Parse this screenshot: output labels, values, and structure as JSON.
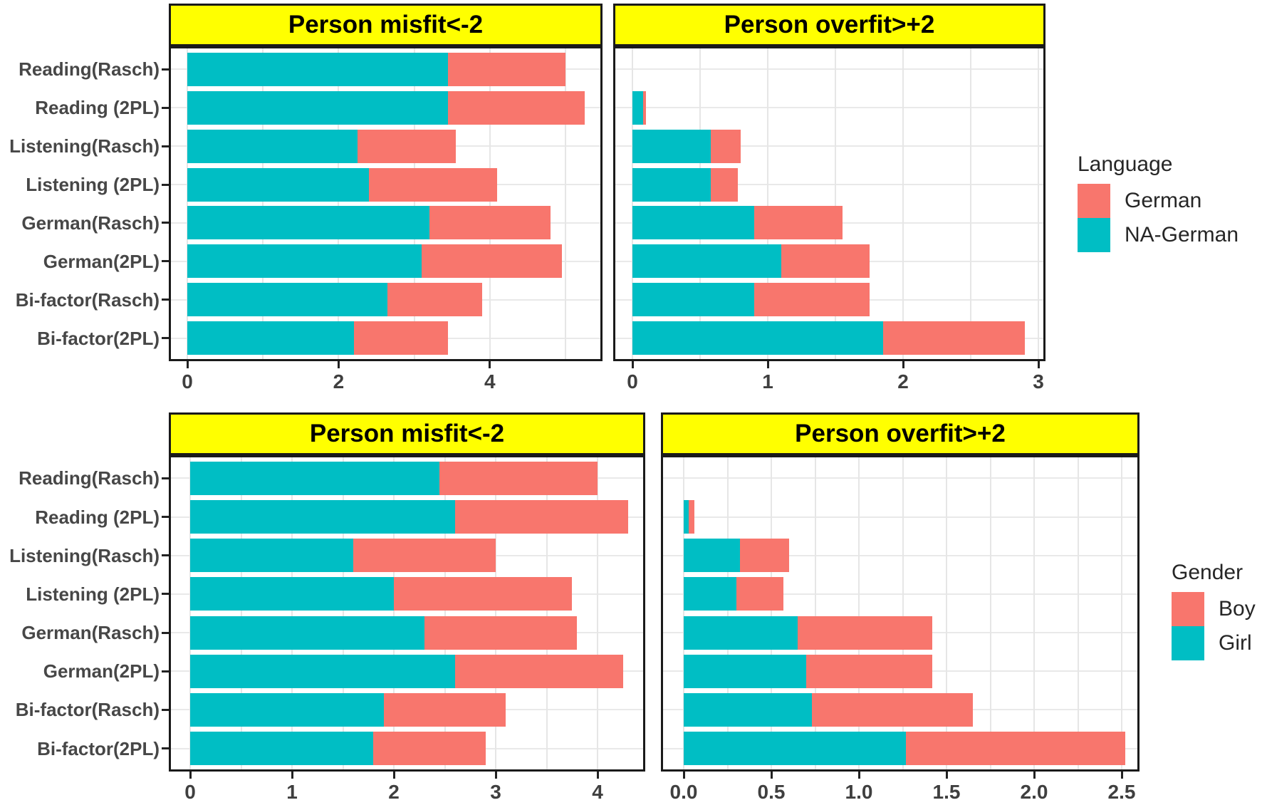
{
  "colors": {
    "red": "#F8766D",
    "teal": "#00BEC4",
    "strip_bg": "#FFFF00",
    "grid": "#E6E6E6",
    "panel_border": "#1A1A1A",
    "axis_text": "#3F3F3F"
  },
  "categories": [
    "Reading(Rasch)",
    "Reading (2PL)",
    "Listening(Rasch)",
    "Listening (2PL)",
    "German(Rasch)",
    "German(2PL)",
    "Bi-factor(Rasch)",
    "Bi-factor(2PL)"
  ],
  "legends": [
    {
      "title": "Language",
      "entries": [
        {
          "label": "German",
          "color": "red"
        },
        {
          "label": "NA-German",
          "color": "teal"
        }
      ]
    },
    {
      "title": "Gender",
      "entries": [
        {
          "label": "Boy",
          "color": "red"
        },
        {
          "label": "Girl",
          "color": "teal"
        }
      ]
    }
  ],
  "chart_data": [
    {
      "id": "top-left",
      "type": "bar",
      "orientation": "horizontal-stacked",
      "title": "Person misfit<-2",
      "legend_group": "Language",
      "categories": [
        "Reading(Rasch)",
        "Reading (2PL)",
        "Listening(Rasch)",
        "Listening (2PL)",
        "German(Rasch)",
        "German(2PL)",
        "Bi-factor(Rasch)",
        "Bi-factor(2PL)"
      ],
      "xlim": [
        0,
        5.49
      ],
      "x_ticks": [
        0,
        2,
        4
      ],
      "x_tick_labels": [
        "0",
        "2",
        "4"
      ],
      "grid_step": 1,
      "series": [
        {
          "name": "NA-German",
          "color": "teal",
          "values": [
            3.45,
            3.45,
            2.25,
            2.4,
            3.2,
            3.1,
            2.65,
            2.2
          ]
        },
        {
          "name": "German",
          "color": "red",
          "values": [
            1.55,
            1.8,
            1.3,
            1.7,
            1.6,
            1.85,
            1.25,
            1.25
          ]
        }
      ]
    },
    {
      "id": "top-right",
      "type": "bar",
      "orientation": "horizontal-stacked",
      "title": "Person overfit>+2",
      "legend_group": "Language",
      "categories": [
        "Reading(Rasch)",
        "Reading (2PL)",
        "Listening(Rasch)",
        "Listening (2PL)",
        "German(Rasch)",
        "German(2PL)",
        "Bi-factor(Rasch)",
        "Bi-factor(2PL)"
      ],
      "xlim": [
        0,
        3.05
      ],
      "x_ticks": [
        0,
        1,
        2,
        3
      ],
      "x_tick_labels": [
        "0",
        "1",
        "2",
        "3"
      ],
      "grid_step": 0.5,
      "series": [
        {
          "name": "NA-German",
          "color": "teal",
          "values": [
            0,
            0.08,
            0.58,
            0.58,
            0.9,
            1.1,
            0.9,
            1.85
          ]
        },
        {
          "name": "German",
          "color": "red",
          "values": [
            0,
            0.02,
            0.22,
            0.2,
            0.65,
            0.65,
            0.85,
            1.05
          ]
        }
      ]
    },
    {
      "id": "bottom-left",
      "type": "bar",
      "orientation": "horizontal-stacked",
      "title": "Person misfit<-2",
      "legend_group": "Gender",
      "categories": [
        "Reading(Rasch)",
        "Reading (2PL)",
        "Listening(Rasch)",
        "Listening (2PL)",
        "German(Rasch)",
        "German(2PL)",
        "Bi-factor(Rasch)",
        "Bi-factor(2PL)"
      ],
      "xlim": [
        0,
        4.47
      ],
      "x_ticks": [
        0,
        1,
        2,
        3,
        4
      ],
      "x_tick_labels": [
        "0",
        "1",
        "2",
        "3",
        "4"
      ],
      "grid_step": 0.5,
      "series": [
        {
          "name": "Girl",
          "color": "teal",
          "values": [
            2.45,
            2.6,
            1.6,
            2.0,
            2.3,
            2.6,
            1.9,
            1.8
          ]
        },
        {
          "name": "Boy",
          "color": "red",
          "values": [
            1.55,
            1.7,
            1.4,
            1.75,
            1.5,
            1.65,
            1.2,
            1.1
          ]
        }
      ]
    },
    {
      "id": "bottom-right",
      "type": "bar",
      "orientation": "horizontal-stacked",
      "title": "Person overfit>+2",
      "legend_group": "Gender",
      "categories": [
        "Reading(Rasch)",
        "Reading (2PL)",
        "Listening(Rasch)",
        "Listening (2PL)",
        "German(Rasch)",
        "German(2PL)",
        "Bi-factor(Rasch)",
        "Bi-factor(2PL)"
      ],
      "xlim": [
        0,
        2.6
      ],
      "x_ticks": [
        0,
        0.5,
        1,
        1.5,
        2,
        2.5
      ],
      "x_tick_labels": [
        "0.0",
        "0.5",
        "1.0",
        "1.5",
        "2.0",
        "2.5"
      ],
      "grid_step": 0.25,
      "series": [
        {
          "name": "Girl",
          "color": "teal",
          "values": [
            0,
            0.03,
            0.32,
            0.3,
            0.65,
            0.7,
            0.73,
            1.27
          ]
        },
        {
          "name": "Boy",
          "color": "red",
          "values": [
            0,
            0.03,
            0.28,
            0.27,
            0.77,
            0.72,
            0.92,
            1.25
          ]
        }
      ]
    }
  ]
}
